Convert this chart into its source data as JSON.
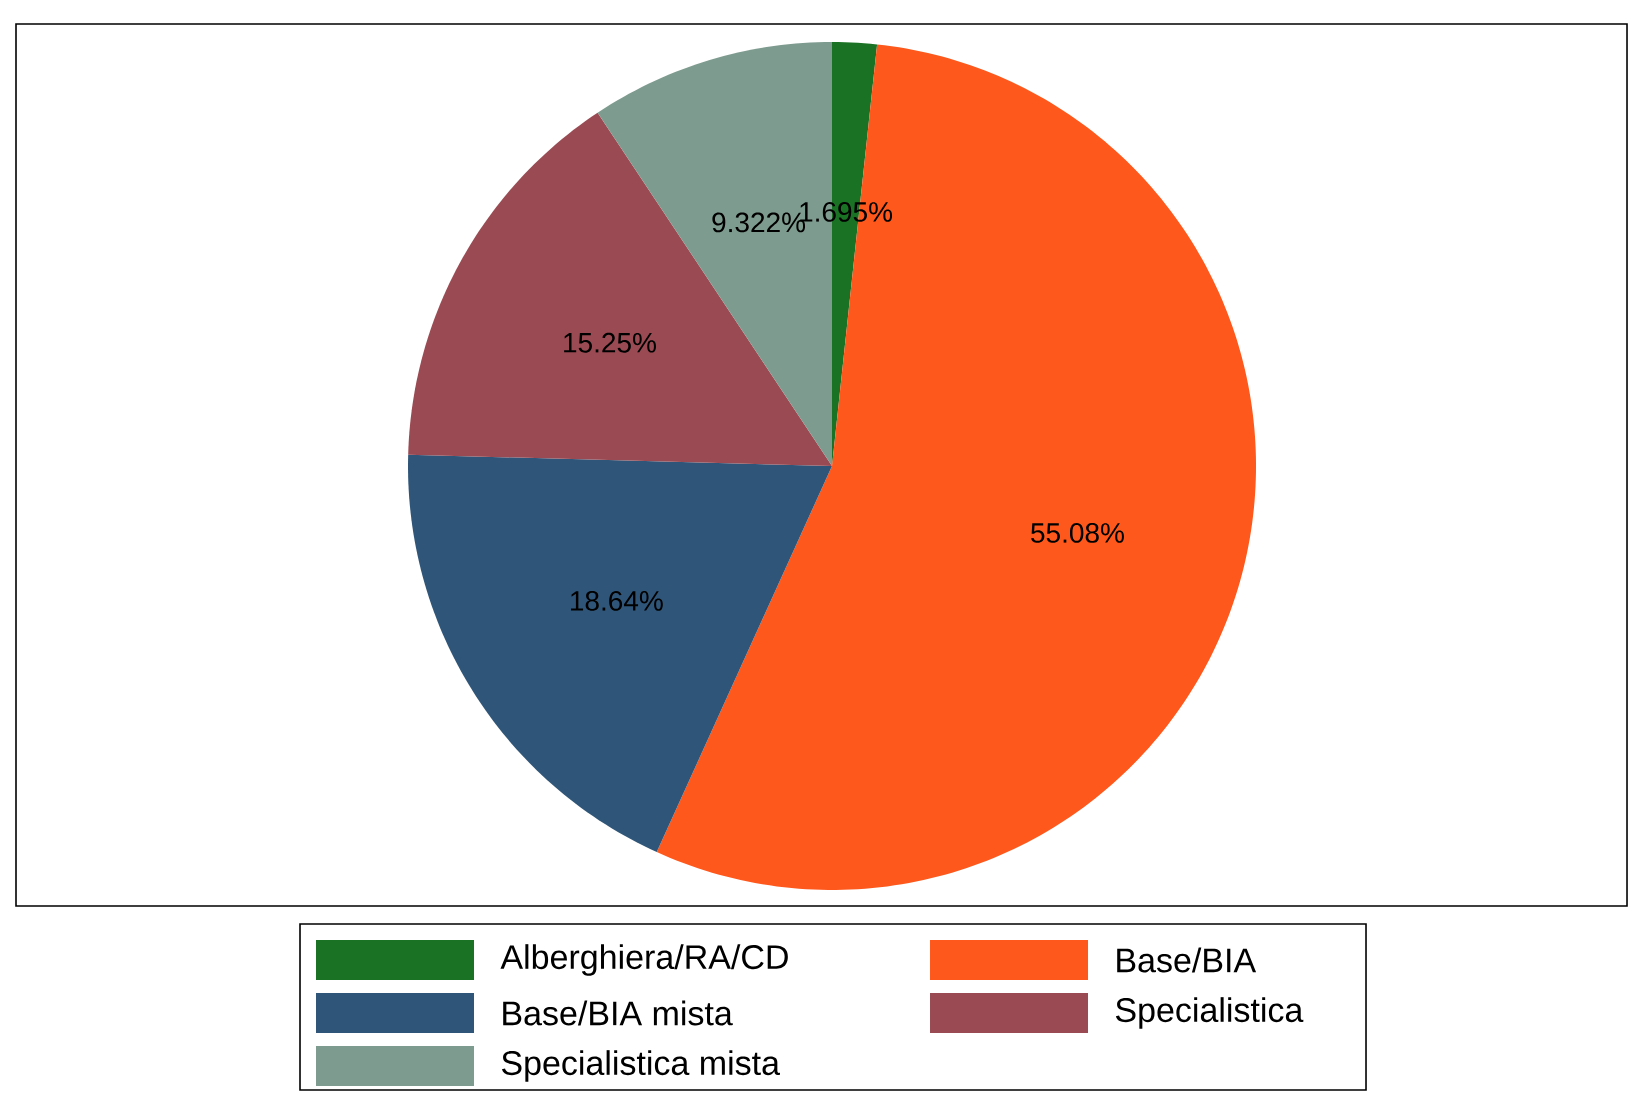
{
  "chart_data": {
    "type": "pie",
    "categories": [
      "Alberghiera/RA/CD",
      "Base/BIA",
      "Base/BIA mista",
      "Specialistica",
      "Specialistica mista"
    ],
    "values": [
      1.695,
      55.08,
      18.64,
      15.25,
      9.322
    ],
    "colors": [
      "#1a7224",
      "#ff581c",
      "#2f5679",
      "#994a52",
      "#7e9b8f"
    ],
    "value_labels": [
      "1.695%",
      "55.08%",
      "18.64%",
      "15.25%",
      "9.322%"
    ],
    "legend": "bottom"
  }
}
